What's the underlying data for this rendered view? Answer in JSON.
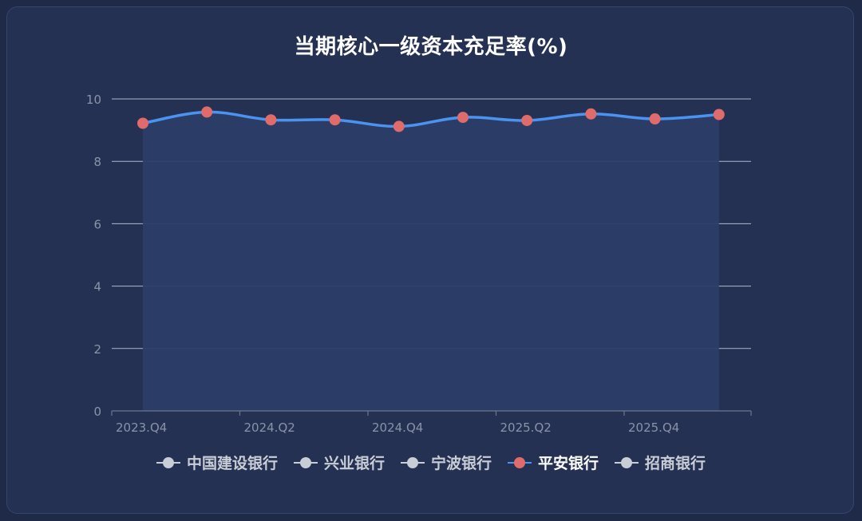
{
  "title": "当期核心一级资本充足率(%)",
  "colors": {
    "line": "#4a93f0",
    "marker": "#e06b6b",
    "area": "#2c3e68",
    "grid": "#c8d0e0",
    "axis": "#6b7690",
    "tick_text": "#8a93a8",
    "legend_inactive": "#c9cdd6"
  },
  "chart_data": {
    "type": "line",
    "smooth": true,
    "area_fill": true,
    "title": "当期核心一级资本充足率(%)",
    "x": [
      "2023.Q4",
      "2024.Q1",
      "2024.Q2",
      "2024.Q3",
      "2024.Q4",
      "2025.Q1",
      "2025.Q2",
      "2025.Q3",
      "2025.Q4",
      "2026.Q1"
    ],
    "x_tick_labels": [
      "2023.Q4",
      "2024.Q2",
      "2024.Q4",
      "2025.Q2",
      "2025.Q4"
    ],
    "ylim": [
      0,
      10
    ],
    "yticks": [
      0,
      2,
      4,
      6,
      8,
      10
    ],
    "grid": true,
    "legend_position": "bottom",
    "series": [
      {
        "name": "平安银行",
        "active": true,
        "values": [
          9.22,
          9.58,
          9.33,
          9.33,
          9.12,
          9.41,
          9.31,
          9.52,
          9.36,
          9.5
        ]
      }
    ]
  },
  "legend": [
    {
      "label": "中国建设银行",
      "active": false
    },
    {
      "label": "兴业银行",
      "active": false
    },
    {
      "label": "宁波银行",
      "active": false
    },
    {
      "label": "平安银行",
      "active": true
    },
    {
      "label": "招商银行",
      "active": false
    }
  ]
}
